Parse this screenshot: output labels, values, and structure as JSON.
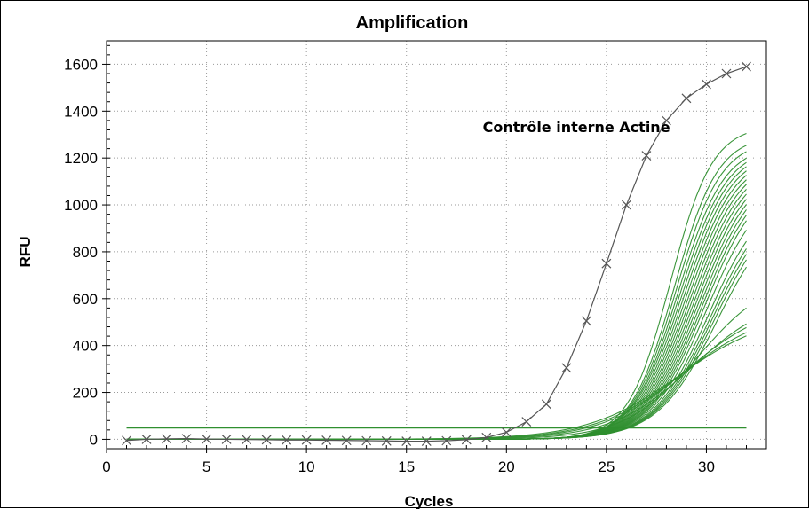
{
  "chart_data": {
    "type": "line",
    "title": "Amplification",
    "xlabel": "Cycles",
    "ylabel": "RFU",
    "xlim": [
      0,
      33
    ],
    "ylim": [
      -40,
      1700
    ],
    "xticks": [
      0,
      5,
      10,
      15,
      20,
      25,
      30
    ],
    "yticks": [
      0,
      200,
      400,
      600,
      800,
      1000,
      1200,
      1400,
      1600
    ],
    "grid": true,
    "annotations": [
      {
        "text": "Contrôle interne Actine",
        "x": 23.5,
        "y": 1310
      }
    ],
    "threshold": {
      "y": 50,
      "x_range": [
        1,
        32
      ],
      "color": "#2f8f2f"
    },
    "colors": {
      "control": "#555555",
      "samples": "#2f8f2f"
    },
    "series": [
      {
        "role": "control",
        "marker": "x",
        "x": [
          1,
          2,
          3,
          4,
          5,
          6,
          7,
          8,
          9,
          10,
          11,
          12,
          13,
          14,
          15,
          16,
          17,
          18,
          19,
          20,
          21,
          22,
          23,
          24,
          25,
          26,
          27,
          28,
          29,
          30,
          31,
          32
        ],
        "y": [
          -5,
          0,
          2,
          3,
          1,
          0,
          -1,
          -2,
          -3,
          -3,
          -4,
          -5,
          -6,
          -7,
          -8,
          -8,
          -6,
          -2,
          8,
          30,
          75,
          150,
          305,
          505,
          750,
          1000,
          1210,
          1360,
          1455,
          1515,
          1560,
          1590
        ]
      }
    ],
    "sample_curves": {
      "count": 28,
      "x_start": 1,
      "x_end": 32,
      "plateaus": [
        1340,
        1300,
        1280,
        1260,
        1250,
        1240,
        1230,
        1220,
        1210,
        1200,
        1190,
        1180,
        1170,
        1160,
        1150,
        1140,
        1130,
        1100,
        1060,
        1040,
        1030,
        1020,
        1000,
        710,
        620,
        590,
        560,
        540
      ],
      "midpoints": [
        28.2,
        28.4,
        28.5,
        28.6,
        28.7,
        28.8,
        28.9,
        29.0,
        29.1,
        29.2,
        29.3,
        29.4,
        29.5,
        29.6,
        29.7,
        29.8,
        29.9,
        30.0,
        30.1,
        30.2,
        30.3,
        30.4,
        30.5,
        29.6,
        29.3,
        29.0,
        28.8,
        28.6
      ],
      "slopes": [
        0.95,
        0.92,
        0.9,
        0.88,
        0.86,
        0.85,
        0.84,
        0.83,
        0.82,
        0.81,
        0.8,
        0.79,
        0.78,
        0.77,
        0.76,
        0.75,
        0.74,
        0.73,
        0.72,
        0.71,
        0.7,
        0.69,
        0.68,
        0.55,
        0.5,
        0.48,
        0.46,
        0.44
      ]
    }
  }
}
